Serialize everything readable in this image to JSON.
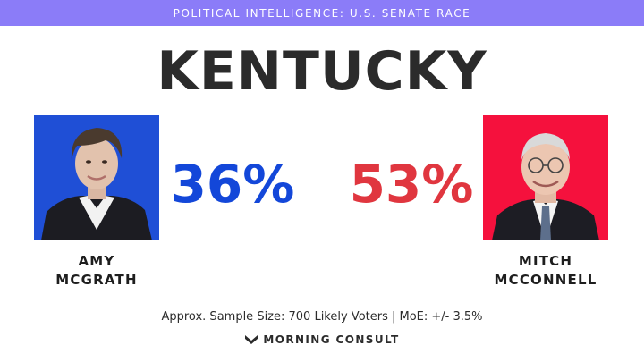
{
  "banner": {
    "text": "POLITICAL INTELLIGENCE: U.S. SENATE RACE"
  },
  "title": "KENTUCKY",
  "chart_data": {
    "type": "table",
    "title": "KENTUCKY",
    "candidates": [
      {
        "first": "AMY",
        "last": "MCGRATH",
        "value": 36,
        "label": "36%",
        "color": "#1347d9",
        "photo_bg": "#1f4fd6"
      },
      {
        "first": "MITCH",
        "last": "MCCONNELL",
        "value": 53,
        "label": "53%",
        "color": "#e0363f",
        "photo_bg": "#f5113d"
      }
    ]
  },
  "footnote": "Approx. Sample Size: 700 Likely Voters | MoE: +/- 3.5%",
  "logo": {
    "icon": "morning-consult-chevron-icon",
    "text": "MORNING CONSULT"
  },
  "colors": {
    "banner": "#8b7cf8",
    "text": "#2b2b2b"
  }
}
